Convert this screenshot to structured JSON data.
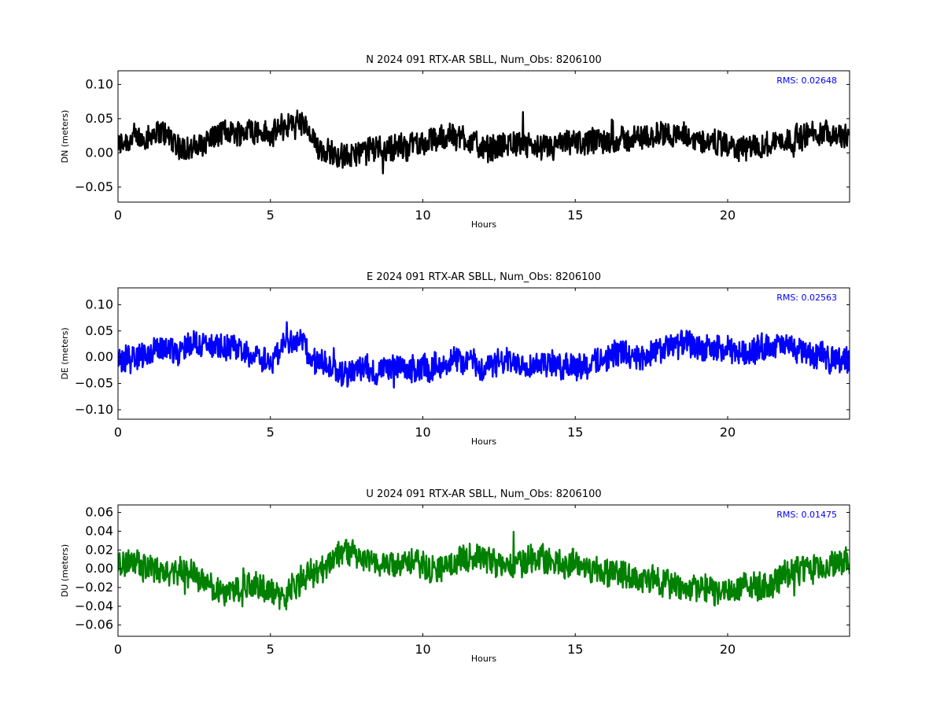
{
  "chart_data": [
    {
      "type": "line",
      "title": "N 2024 091 RTX-AR  SBLL, Num_Obs: 8206100",
      "xlabel": "Hours",
      "ylabel": "DN (meters)",
      "xlim": [
        0,
        24
      ],
      "ylim": [
        -0.072,
        0.12
      ],
      "xticks": [
        0,
        5,
        10,
        15,
        20
      ],
      "xtick_labels": [
        "0",
        "5",
        "10",
        "15",
        "20"
      ],
      "yticks": [
        -0.05,
        0.0,
        0.05,
        0.1
      ],
      "ytick_labels": [
        "−0.05",
        "0.00",
        "0.05",
        "0.10"
      ],
      "annotation": "RMS:  0.02648",
      "annotation_color": "#0000ff",
      "series": [
        {
          "color": "#000000",
          "amplitude": 0.018,
          "trend_x": [
            0,
            0.5,
            1,
            1.5,
            2,
            2.5,
            3,
            3.5,
            4,
            4.5,
            5,
            5.5,
            6,
            6.5,
            7,
            7.5,
            8,
            8.5,
            9,
            9.5,
            10,
            10.5,
            11,
            11.5,
            12,
            12.5,
            13,
            13.5,
            14,
            14.5,
            15,
            15.5,
            16,
            16.5,
            17,
            17.5,
            18,
            18.5,
            19,
            19.5,
            20,
            20.5,
            21,
            21.5,
            22,
            22.5,
            23,
            23.5,
            24
          ],
          "trend_y": [
            0.01,
            0.02,
            0.025,
            0.03,
            0.01,
            0.005,
            0.02,
            0.03,
            0.03,
            0.035,
            0.025,
            0.04,
            0.045,
            0.01,
            0.0,
            -0.005,
            0.0,
            0.01,
            0.005,
            0.01,
            0.015,
            0.02,
            0.025,
            0.02,
            0.005,
            0.01,
            0.015,
            0.01,
            0.005,
            0.01,
            0.015,
            0.015,
            0.015,
            0.02,
            0.02,
            0.025,
            0.03,
            0.025,
            0.02,
            0.015,
            0.01,
            0.005,
            0.01,
            0.015,
            0.02,
            0.025,
            0.03,
            0.03,
            0.02
          ]
        }
      ]
    },
    {
      "type": "line",
      "title": "E 2024 091 RTX-AR  SBLL, Num_Obs: 8206100",
      "xlabel": "Hours",
      "ylabel": "DE (meters)",
      "xlim": [
        0,
        24
      ],
      "ylim": [
        -0.118,
        0.132
      ],
      "xticks": [
        0,
        5,
        10,
        15,
        20
      ],
      "xtick_labels": [
        "0",
        "5",
        "10",
        "15",
        "20"
      ],
      "yticks": [
        -0.1,
        -0.05,
        0.0,
        0.05,
        0.1
      ],
      "ytick_labels": [
        "−0.10",
        "−0.05",
        "0.00",
        "0.05",
        "0.10"
      ],
      "annotation": "RMS:  0.02563",
      "annotation_color": "#0000ff",
      "series": [
        {
          "color": "#0000ff",
          "amplitude": 0.024,
          "trend_x": [
            0,
            0.5,
            1,
            1.5,
            2,
            2.5,
            3,
            3.5,
            4,
            4.5,
            5,
            5.5,
            6,
            6.5,
            7,
            7.5,
            8,
            8.5,
            9,
            9.5,
            10,
            10.5,
            11,
            11.5,
            12,
            12.5,
            13,
            13.5,
            14,
            14.5,
            15,
            15.5,
            16,
            16.5,
            17,
            17.5,
            18,
            18.5,
            19,
            19.5,
            20,
            20.5,
            21,
            21.5,
            22,
            22.5,
            23,
            23.5,
            24
          ],
          "trend_y": [
            -0.01,
            0.0,
            0.01,
            0.02,
            0.01,
            0.03,
            0.02,
            0.02,
            0.015,
            0.005,
            -0.01,
            0.03,
            0.03,
            -0.01,
            -0.02,
            -0.03,
            -0.02,
            -0.03,
            -0.02,
            -0.025,
            -0.02,
            -0.015,
            -0.01,
            -0.005,
            -0.02,
            -0.01,
            -0.01,
            -0.01,
            -0.01,
            -0.015,
            -0.015,
            -0.015,
            0.0,
            0.01,
            0.0,
            0.005,
            0.02,
            0.025,
            0.02,
            0.015,
            0.01,
            0.01,
            0.015,
            0.02,
            0.02,
            0.01,
            0.0,
            0.0,
            -0.01
          ]
        }
      ]
    },
    {
      "type": "line",
      "title": "U 2024 091 RTX-AR  SBLL, Num_Obs: 8206100",
      "xlabel": "Hours",
      "ylabel": "DU (meters)",
      "xlim": [
        0,
        24
      ],
      "ylim": [
        -0.072,
        0.068
      ],
      "xticks": [
        0,
        5,
        10,
        15,
        20
      ],
      "xtick_labels": [
        "0",
        "5",
        "10",
        "15",
        "20"
      ],
      "yticks": [
        -0.06,
        -0.04,
        -0.02,
        0.0,
        0.02,
        0.04,
        0.06
      ],
      "ytick_labels": [
        "−0.06",
        "−0.04",
        "−0.02",
        "0.00",
        "0.02",
        "0.04",
        "0.06"
      ],
      "annotation": "RMS:  0.01475",
      "annotation_color": "#0000ff",
      "series": [
        {
          "color": "#008000",
          "amplitude": 0.014,
          "trend_x": [
            0,
            0.5,
            1,
            1.5,
            2,
            2.5,
            3,
            3.5,
            4,
            4.5,
            5,
            5.5,
            6,
            6.5,
            7,
            7.5,
            8,
            8.5,
            9,
            9.5,
            10,
            10.5,
            11,
            11.5,
            12,
            12.5,
            13,
            13.5,
            14,
            14.5,
            15,
            15.5,
            16,
            16.5,
            17,
            17.5,
            18,
            18.5,
            19,
            19.5,
            20,
            20.5,
            21,
            21.5,
            22,
            22.5,
            23,
            23.5,
            24
          ],
          "trend_y": [
            0.005,
            0.01,
            0.0,
            -0.005,
            0.0,
            -0.005,
            -0.02,
            -0.025,
            -0.02,
            -0.015,
            -0.025,
            -0.03,
            -0.01,
            -0.005,
            0.01,
            0.02,
            0.01,
            0.005,
            0.005,
            0.01,
            0.005,
            0.0,
            0.005,
            0.015,
            0.01,
            0.005,
            0.005,
            0.01,
            0.01,
            0.005,
            0.005,
            0.0,
            -0.005,
            -0.005,
            -0.01,
            -0.01,
            -0.015,
            -0.02,
            -0.02,
            -0.025,
            -0.025,
            -0.02,
            -0.02,
            -0.015,
            -0.005,
            0.0,
            0.0,
            0.005,
            0.005
          ]
        }
      ]
    }
  ]
}
